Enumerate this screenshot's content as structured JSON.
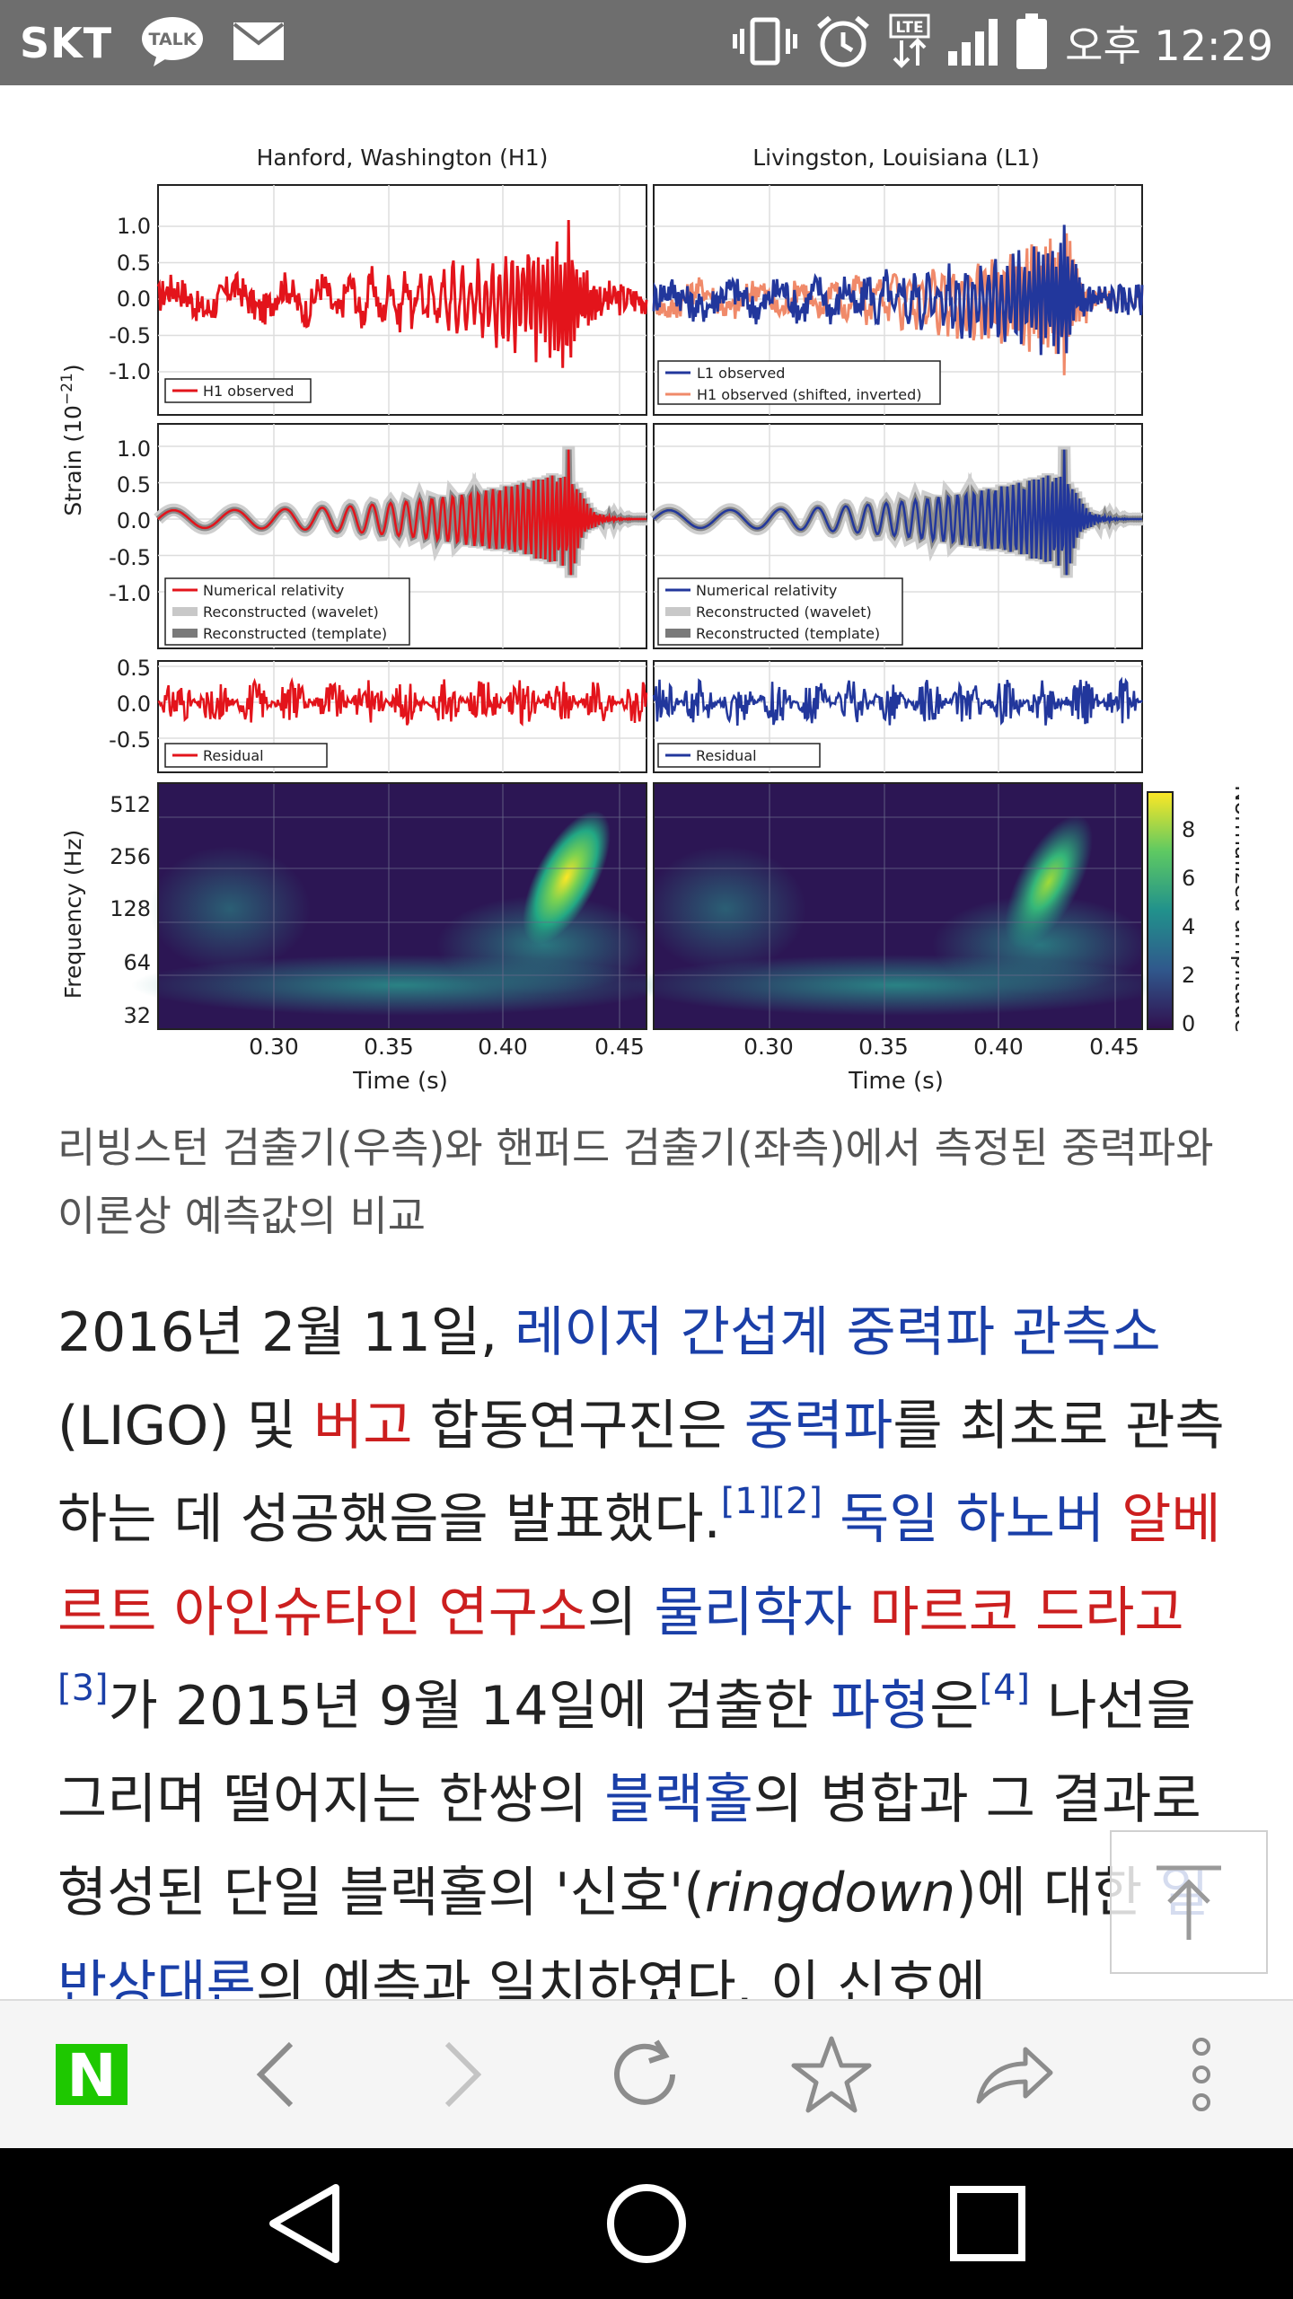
{
  "status_bar": {
    "carrier": "SKT",
    "talk_badge": "TALK",
    "network": "LTE",
    "time": "오후 12:29"
  },
  "figure": {
    "left_title": "Hanford, Washington (H1)",
    "right_title": "Livingston, Louisiana (L1)",
    "strain_label": "Strain (10",
    "strain_exp": "−21",
    "strain_close": ")",
    "strain_ticks_top": [
      "1.0",
      "0.5",
      "0.0",
      "-0.5",
      "-1.0"
    ],
    "strain_ticks_mid": [
      "1.0",
      "0.5",
      "0.0",
      "-0.5",
      "-1.0"
    ],
    "strain_ticks_res": [
      "0.5",
      "0.0",
      "-0.5"
    ],
    "freq_label": "Frequency (Hz)",
    "freq_ticks": [
      "512",
      "256",
      "128",
      "64",
      "32"
    ],
    "time_label": "Time (s)",
    "time_ticks": [
      "0.30",
      "0.35",
      "0.40",
      "0.45"
    ],
    "colorbar_label": "Normalized amplitude",
    "colorbar_ticks": [
      "8",
      "6",
      "4",
      "2",
      "0"
    ],
    "legend_h1_observed": "H1 observed",
    "legend_l1_observed": "L1 observed",
    "legend_h1_shifted": "H1 observed (shifted, inverted)",
    "legend_nr": "Numerical relativity",
    "legend_wavelet": "Reconstructed (wavelet)",
    "legend_template": "Reconstructed (template)",
    "legend_residual": "Residual",
    "colors": {
      "h1": "#e3141b",
      "l1": "#22379c",
      "h1_shifted": "#f08a6a"
    }
  },
  "caption": "리빙스턴 검출기(우측)와 핸퍼드 검출기(좌측)에서 측정된 중력파와 이론상 예측값의 비교",
  "article": {
    "s1": "2016년 2월 11일, ",
    "l1": "레이저 간섭계 중력파 관측소",
    "s2": "(LIGO) 및 ",
    "l2": "버고",
    "s3": " 합동연구진은 ",
    "l3": "중력파",
    "s4": "를 최초로 관측하는 데 성공했음을 발표했다.",
    "ref1": "[1]",
    "ref2": "[2]",
    "s5": " ",
    "l4": "독일",
    "s6": " ",
    "l5": "하노버",
    "s7": " ",
    "l6": "알베르트 아인슈타인 연구소",
    "s8": "의 ",
    "l7": "물리학자",
    "s9": " ",
    "l8": "마르코 드라고",
    "ref3": "[3]",
    "s10": "가 2015년 9월 14일에 검출한 ",
    "l9": "파형",
    "s11": "은",
    "ref4": "[4]",
    "s12": " 나선을 그리며 떨어지는 한쌍의 ",
    "l10": "블랙홀",
    "s13": "의 병합과 그 결과로 형성된 단일 블랙홀의 '신호'(",
    "ital": "ringdown",
    "s14": ")에 대한 ",
    "l11": "일반상대론",
    "s15": "의 예측과 일치하였다. 이 신호에"
  },
  "toolbar": {
    "naver_logo": "N",
    "icons": [
      "naver-home-icon",
      "back-icon",
      "forward-icon",
      "refresh-icon",
      "bookmark-star-icon",
      "share-icon",
      "more-icon"
    ]
  },
  "navbar": {
    "icons": [
      "back-triangle-icon",
      "home-circle-icon",
      "recents-square-icon"
    ]
  }
}
